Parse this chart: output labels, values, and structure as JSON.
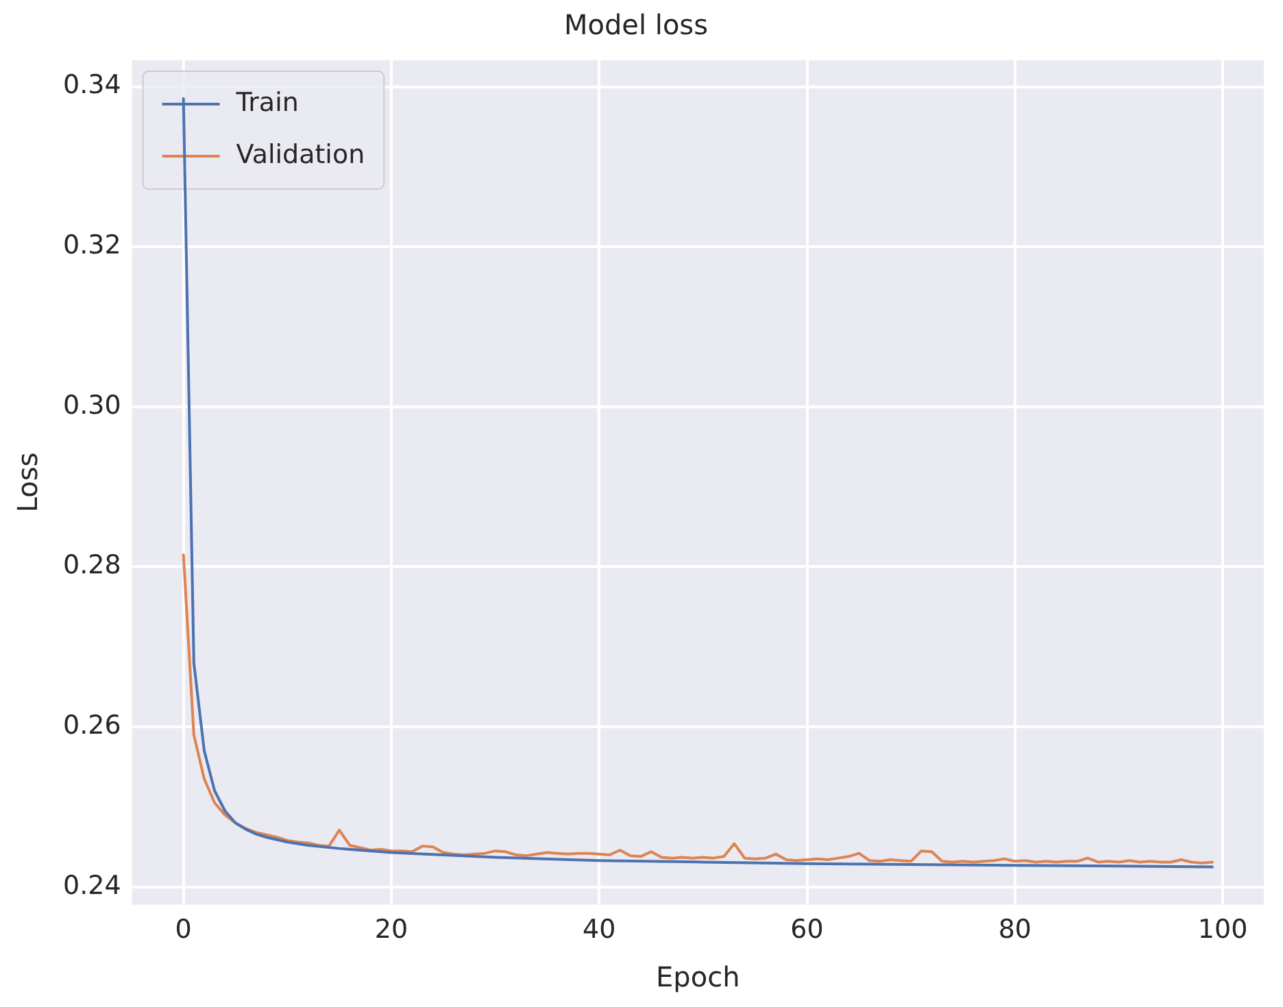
{
  "chart_data": {
    "type": "line",
    "title": "Model loss",
    "xlabel": "Epoch",
    "ylabel": "Loss",
    "xlim": [
      -4.95,
      103.95
    ],
    "ylim": [
      0.2378,
      0.3433
    ],
    "xticks": [
      0,
      20,
      40,
      60,
      80,
      100
    ],
    "yticks": [
      0.24,
      0.26,
      0.28,
      {
        "value": 0.3,
        "label": "0.30"
      },
      0.32,
      0.34
    ],
    "grid": true,
    "legend": "top left",
    "marker": "none",
    "line_style": "solid",
    "series": [
      {
        "name": "Train",
        "color": "#4c72b0",
        "x": [
          0,
          1,
          2,
          3,
          4,
          5,
          6,
          7,
          8,
          10,
          12,
          15,
          20,
          25,
          30,
          40,
          50,
          60,
          70,
          80,
          90,
          99
        ],
        "values": [
          0.3385,
          0.268,
          0.257,
          0.252,
          0.2495,
          0.248,
          0.2472,
          0.2466,
          0.2462,
          0.2456,
          0.2452,
          0.2448,
          0.2443,
          0.244,
          0.2437,
          0.2433,
          0.2431,
          0.2429,
          0.2428,
          0.2427,
          0.2426,
          0.2425
        ]
      },
      {
        "name": "Validation",
        "color": "#dd8452",
        "x": [
          0,
          1,
          2,
          3,
          4,
          5,
          6,
          7,
          8,
          9,
          10,
          11,
          12,
          13,
          14,
          15,
          16,
          17,
          18,
          19,
          20,
          21,
          22,
          23,
          24,
          25,
          26,
          27,
          28,
          29,
          30,
          31,
          32,
          33,
          34,
          35,
          36,
          37,
          38,
          39,
          40,
          41,
          42,
          43,
          44,
          45,
          46,
          47,
          48,
          49,
          50,
          51,
          52,
          53,
          54,
          55,
          56,
          57,
          58,
          59,
          60,
          61,
          62,
          63,
          64,
          65,
          66,
          67,
          68,
          69,
          70,
          71,
          72,
          73,
          74,
          75,
          76,
          77,
          78,
          79,
          80,
          81,
          82,
          83,
          84,
          85,
          86,
          87,
          88,
          89,
          90,
          91,
          92,
          93,
          94,
          95,
          96,
          97,
          98,
          99
        ],
        "values": [
          0.2815,
          0.259,
          0.2535,
          0.2505,
          0.249,
          0.248,
          0.2473,
          0.2468,
          0.2465,
          0.2462,
          0.2458,
          0.2456,
          0.2455,
          0.2452,
          0.2451,
          0.2471,
          0.2452,
          0.2449,
          0.2446,
          0.2447,
          0.2445,
          0.2445,
          0.2444,
          0.2451,
          0.245,
          0.2443,
          0.2441,
          0.244,
          0.2441,
          0.2442,
          0.2445,
          0.2444,
          0.244,
          0.2439,
          0.2441,
          0.2443,
          0.2442,
          0.2441,
          0.2442,
          0.2442,
          0.2441,
          0.244,
          0.2446,
          0.2439,
          0.2438,
          0.2444,
          0.2437,
          0.2436,
          0.2437,
          0.2436,
          0.2437,
          0.2436,
          0.2438,
          0.2454,
          0.2436,
          0.2435,
          0.2436,
          0.2441,
          0.2434,
          0.2433,
          0.2434,
          0.2435,
          0.2434,
          0.2436,
          0.2438,
          0.2442,
          0.2433,
          0.2432,
          0.2434,
          0.2433,
          0.2432,
          0.2445,
          0.2444,
          0.2432,
          0.2431,
          0.2432,
          0.2431,
          0.2432,
          0.2433,
          0.2435,
          0.2432,
          0.2433,
          0.2431,
          0.2432,
          0.2431,
          0.2432,
          0.2432,
          0.2436,
          0.2431,
          0.2432,
          0.2431,
          0.2433,
          0.2431,
          0.2432,
          0.2431,
          0.2431,
          0.2434,
          0.2431,
          0.243,
          0.2431
        ]
      }
    ]
  }
}
